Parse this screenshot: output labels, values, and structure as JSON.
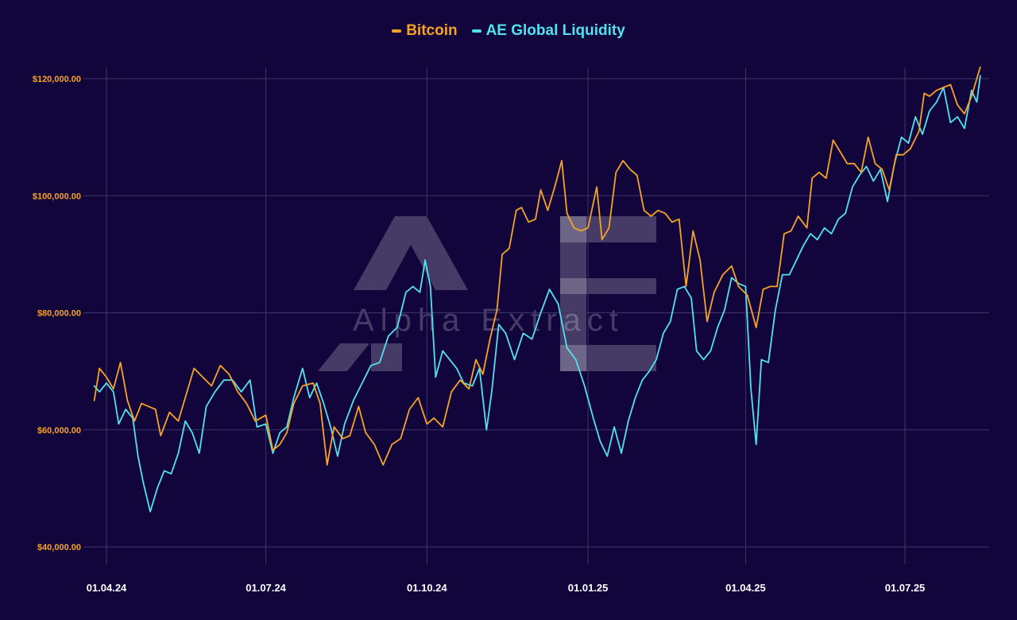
{
  "colors": {
    "background": "#11053b",
    "grid": "#3d3668",
    "bitcoin": "#f7a325",
    "liquidity": "#4fe3f0",
    "ytick": "#f7a325",
    "xtick": "#ffffff"
  },
  "legend": {
    "bitcoin_label": "Bitcoin",
    "liquidity_label": "AE Global Liquidity"
  },
  "watermark": {
    "logo_text": "AE",
    "text": "Alpha Extract"
  },
  "chart_data": {
    "type": "line",
    "title": "",
    "xlabel": "",
    "ylabel": "",
    "ylim": [
      37000,
      122500
    ],
    "ytick_values": [
      40000,
      60000,
      80000,
      100000,
      120000
    ],
    "ytick_labels": [
      "$40,000.00",
      "$60,000.00",
      "$80,000.00",
      "$100,000.00",
      "$120,000.00"
    ],
    "xlim": [
      "2024-03-24",
      "2025-08-15"
    ],
    "xtick_dates": [
      "2024-04-01",
      "2024-07-01",
      "2024-10-01",
      "2025-01-01",
      "2025-04-01",
      "2025-07-01"
    ],
    "xtick_labels": [
      "01.04.24",
      "01.07.24",
      "01.10.24",
      "01.01.25",
      "01.04.25",
      "01.07.25"
    ],
    "grid": true,
    "legend_position": "top-center",
    "series": [
      {
        "name": "Bitcoin",
        "color": "#f7a325",
        "points": [
          [
            "2024-03-25",
            65000
          ],
          [
            "2024-03-28",
            70500
          ],
          [
            "2024-04-01",
            69000
          ],
          [
            "2024-04-05",
            67000
          ],
          [
            "2024-04-09",
            71500
          ],
          [
            "2024-04-13",
            65000
          ],
          [
            "2024-04-17",
            61500
          ],
          [
            "2024-04-21",
            64500
          ],
          [
            "2024-04-25",
            64000
          ],
          [
            "2024-04-29",
            63500
          ],
          [
            "2024-05-02",
            59000
          ],
          [
            "2024-05-07",
            63000
          ],
          [
            "2024-05-12",
            61500
          ],
          [
            "2024-05-16",
            65500
          ],
          [
            "2024-05-21",
            70500
          ],
          [
            "2024-05-26",
            69000
          ],
          [
            "2024-05-31",
            67500
          ],
          [
            "2024-06-05",
            71000
          ],
          [
            "2024-06-10",
            69500
          ],
          [
            "2024-06-15",
            66500
          ],
          [
            "2024-06-20",
            64500
          ],
          [
            "2024-06-25",
            61500
          ],
          [
            "2024-07-01",
            62500
          ],
          [
            "2024-07-05",
            56500
          ],
          [
            "2024-07-09",
            57500
          ],
          [
            "2024-07-13",
            59500
          ],
          [
            "2024-07-17",
            64500
          ],
          [
            "2024-07-22",
            67500
          ],
          [
            "2024-07-28",
            68000
          ],
          [
            "2024-08-01",
            64500
          ],
          [
            "2024-08-05",
            54000
          ],
          [
            "2024-08-09",
            60500
          ],
          [
            "2024-08-14",
            58500
          ],
          [
            "2024-08-18",
            59000
          ],
          [
            "2024-08-23",
            64000
          ],
          [
            "2024-08-27",
            59500
          ],
          [
            "2024-09-01",
            57500
          ],
          [
            "2024-09-06",
            54000
          ],
          [
            "2024-09-11",
            57500
          ],
          [
            "2024-09-16",
            58500
          ],
          [
            "2024-09-21",
            63500
          ],
          [
            "2024-09-26",
            65500
          ],
          [
            "2024-10-01",
            61000
          ],
          [
            "2024-10-05",
            62000
          ],
          [
            "2024-10-10",
            60500
          ],
          [
            "2024-10-15",
            66500
          ],
          [
            "2024-10-20",
            68500
          ],
          [
            "2024-10-25",
            67000
          ],
          [
            "2024-10-29",
            72000
          ],
          [
            "2024-11-02",
            69500
          ],
          [
            "2024-11-06",
            75500
          ],
          [
            "2024-11-10",
            80500
          ],
          [
            "2024-11-13",
            90000
          ],
          [
            "2024-11-17",
            91000
          ],
          [
            "2024-11-21",
            97500
          ],
          [
            "2024-11-24",
            98000
          ],
          [
            "2024-11-28",
            95500
          ],
          [
            "2024-12-02",
            96000
          ],
          [
            "2024-12-05",
            101000
          ],
          [
            "2024-12-09",
            97500
          ],
          [
            "2024-12-13",
            101500
          ],
          [
            "2024-12-17",
            106000
          ],
          [
            "2024-12-20",
            97000
          ],
          [
            "2024-12-24",
            94500
          ],
          [
            "2024-12-28",
            94000
          ],
          [
            "2025-01-01",
            94500
          ],
          [
            "2025-01-06",
            101500
          ],
          [
            "2025-01-09",
            92500
          ],
          [
            "2025-01-13",
            94500
          ],
          [
            "2025-01-17",
            104000
          ],
          [
            "2025-01-21",
            106000
          ],
          [
            "2025-01-25",
            104500
          ],
          [
            "2025-01-29",
            103500
          ],
          [
            "2025-02-02",
            97500
          ],
          [
            "2025-02-06",
            96500
          ],
          [
            "2025-02-10",
            97500
          ],
          [
            "2025-02-14",
            97000
          ],
          [
            "2025-02-18",
            95500
          ],
          [
            "2025-02-22",
            96000
          ],
          [
            "2025-02-26",
            84500
          ],
          [
            "2025-03-02",
            94000
          ],
          [
            "2025-03-06",
            89000
          ],
          [
            "2025-03-10",
            78500
          ],
          [
            "2025-03-14",
            83500
          ],
          [
            "2025-03-19",
            86500
          ],
          [
            "2025-03-24",
            88000
          ],
          [
            "2025-03-28",
            84500
          ],
          [
            "2025-04-02",
            83000
          ],
          [
            "2025-04-07",
            77500
          ],
          [
            "2025-04-11",
            84000
          ],
          [
            "2025-04-15",
            84500
          ],
          [
            "2025-04-19",
            84500
          ],
          [
            "2025-04-23",
            93500
          ],
          [
            "2025-04-27",
            94000
          ],
          [
            "2025-05-01",
            96500
          ],
          [
            "2025-05-06",
            94500
          ],
          [
            "2025-05-09",
            103000
          ],
          [
            "2025-05-13",
            104000
          ],
          [
            "2025-05-17",
            103000
          ],
          [
            "2025-05-21",
            109500
          ],
          [
            "2025-05-25",
            107500
          ],
          [
            "2025-05-29",
            105500
          ],
          [
            "2025-06-02",
            105500
          ],
          [
            "2025-06-06",
            104000
          ],
          [
            "2025-06-10",
            110000
          ],
          [
            "2025-06-14",
            105500
          ],
          [
            "2025-06-18",
            104500
          ],
          [
            "2025-06-22",
            101000
          ],
          [
            "2025-06-26",
            107000
          ],
          [
            "2025-06-30",
            107000
          ],
          [
            "2025-07-04",
            108000
          ],
          [
            "2025-07-09",
            111000
          ],
          [
            "2025-07-12",
            117500
          ],
          [
            "2025-07-15",
            117000
          ],
          [
            "2025-07-19",
            118000
          ],
          [
            "2025-07-23",
            118500
          ],
          [
            "2025-07-27",
            119000
          ],
          [
            "2025-07-31",
            115500
          ],
          [
            "2025-08-04",
            114000
          ],
          [
            "2025-08-08",
            117000
          ],
          [
            "2025-08-11",
            120000
          ],
          [
            "2025-08-13",
            122000
          ]
        ]
      },
      {
        "name": "AE Global Liquidity",
        "color": "#4fe3f0",
        "points": [
          [
            "2024-03-25",
            67500
          ],
          [
            "2024-03-28",
            66500
          ],
          [
            "2024-04-01",
            68000
          ],
          [
            "2024-04-05",
            66500
          ],
          [
            "2024-04-08",
            61000
          ],
          [
            "2024-04-12",
            63500
          ],
          [
            "2024-04-16",
            62000
          ],
          [
            "2024-04-19",
            55500
          ],
          [
            "2024-04-22",
            51000
          ],
          [
            "2024-04-26",
            46000
          ],
          [
            "2024-04-30",
            50000
          ],
          [
            "2024-05-04",
            53000
          ],
          [
            "2024-05-08",
            52500
          ],
          [
            "2024-05-12",
            56000
          ],
          [
            "2024-05-16",
            61500
          ],
          [
            "2024-05-20",
            59500
          ],
          [
            "2024-05-24",
            56000
          ],
          [
            "2024-05-28",
            64000
          ],
          [
            "2024-06-02",
            66500
          ],
          [
            "2024-06-07",
            68500
          ],
          [
            "2024-06-12",
            68500
          ],
          [
            "2024-06-17",
            66500
          ],
          [
            "2024-06-22",
            68500
          ],
          [
            "2024-06-26",
            60500
          ],
          [
            "2024-07-01",
            61000
          ],
          [
            "2024-07-05",
            56000
          ],
          [
            "2024-07-09",
            59500
          ],
          [
            "2024-07-13",
            60500
          ],
          [
            "2024-07-17",
            65500
          ],
          [
            "2024-07-22",
            70500
          ],
          [
            "2024-07-26",
            65500
          ],
          [
            "2024-07-30",
            68000
          ],
          [
            "2024-08-03",
            64500
          ],
          [
            "2024-08-07",
            60500
          ],
          [
            "2024-08-11",
            55500
          ],
          [
            "2024-08-15",
            61000
          ],
          [
            "2024-08-20",
            65000
          ],
          [
            "2024-08-25",
            68000
          ],
          [
            "2024-08-30",
            71000
          ],
          [
            "2024-09-04",
            71500
          ],
          [
            "2024-09-09",
            76000
          ],
          [
            "2024-09-14",
            77500
          ],
          [
            "2024-09-19",
            83500
          ],
          [
            "2024-09-23",
            84500
          ],
          [
            "2024-09-27",
            83500
          ],
          [
            "2024-09-30",
            89000
          ],
          [
            "2024-10-03",
            84500
          ],
          [
            "2024-10-06",
            69000
          ],
          [
            "2024-10-10",
            73500
          ],
          [
            "2024-10-14",
            72000
          ],
          [
            "2024-10-18",
            70500
          ],
          [
            "2024-10-22",
            68000
          ],
          [
            "2024-10-27",
            67500
          ],
          [
            "2024-10-31",
            70500
          ],
          [
            "2024-11-04",
            60000
          ],
          [
            "2024-11-07",
            66500
          ],
          [
            "2024-11-11",
            78000
          ],
          [
            "2024-11-15",
            76500
          ],
          [
            "2024-11-20",
            72000
          ],
          [
            "2024-11-25",
            76500
          ],
          [
            "2024-11-30",
            75500
          ],
          [
            "2024-12-05",
            80000
          ],
          [
            "2024-12-10",
            84000
          ],
          [
            "2024-12-15",
            81500
          ],
          [
            "2024-12-20",
            74000
          ],
          [
            "2024-12-25",
            72000
          ],
          [
            "2024-12-30",
            67500
          ],
          [
            "2025-01-04",
            62000
          ],
          [
            "2025-01-08",
            58000
          ],
          [
            "2025-01-12",
            55500
          ],
          [
            "2025-01-16",
            60500
          ],
          [
            "2025-01-20",
            56000
          ],
          [
            "2025-01-24",
            61500
          ],
          [
            "2025-01-28",
            65500
          ],
          [
            "2025-02-01",
            68500
          ],
          [
            "2025-02-05",
            70000
          ],
          [
            "2025-02-09",
            72000
          ],
          [
            "2025-02-13",
            76500
          ],
          [
            "2025-02-17",
            78500
          ],
          [
            "2025-02-21",
            84000
          ],
          [
            "2025-02-25",
            84500
          ],
          [
            "2025-03-01",
            82500
          ],
          [
            "2025-03-04",
            73500
          ],
          [
            "2025-03-08",
            72000
          ],
          [
            "2025-03-12",
            73500
          ],
          [
            "2025-03-16",
            77500
          ],
          [
            "2025-03-20",
            80500
          ],
          [
            "2025-03-24",
            86000
          ],
          [
            "2025-03-28",
            85000
          ],
          [
            "2025-04-01",
            84500
          ],
          [
            "2025-04-04",
            67000
          ],
          [
            "2025-04-07",
            57500
          ],
          [
            "2025-04-10",
            72000
          ],
          [
            "2025-04-14",
            71500
          ],
          [
            "2025-04-18",
            80500
          ],
          [
            "2025-04-22",
            86500
          ],
          [
            "2025-04-26",
            86500
          ],
          [
            "2025-04-30",
            89000
          ],
          [
            "2025-05-04",
            91500
          ],
          [
            "2025-05-08",
            93500
          ],
          [
            "2025-05-12",
            92500
          ],
          [
            "2025-05-16",
            94500
          ],
          [
            "2025-05-20",
            93500
          ],
          [
            "2025-05-24",
            96000
          ],
          [
            "2025-05-28",
            97000
          ],
          [
            "2025-06-01",
            101500
          ],
          [
            "2025-06-05",
            103500
          ],
          [
            "2025-06-09",
            105000
          ],
          [
            "2025-06-13",
            102500
          ],
          [
            "2025-06-17",
            104500
          ],
          [
            "2025-06-21",
            99000
          ],
          [
            "2025-06-25",
            105500
          ],
          [
            "2025-06-29",
            110000
          ],
          [
            "2025-07-03",
            109000
          ],
          [
            "2025-07-07",
            113500
          ],
          [
            "2025-07-11",
            110500
          ],
          [
            "2025-07-15",
            114500
          ],
          [
            "2025-07-19",
            116000
          ],
          [
            "2025-07-23",
            118500
          ],
          [
            "2025-07-27",
            112500
          ],
          [
            "2025-07-31",
            113500
          ],
          [
            "2025-08-04",
            111500
          ],
          [
            "2025-08-08",
            118000
          ],
          [
            "2025-08-11",
            116000
          ],
          [
            "2025-08-13",
            120500
          ]
        ]
      }
    ]
  }
}
